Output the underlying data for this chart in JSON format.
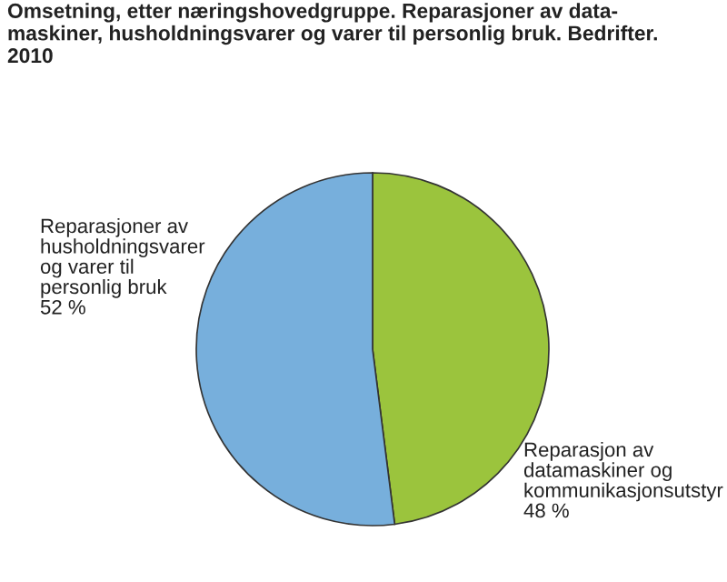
{
  "chart_data": {
    "type": "pie",
    "title": "Omsetning, etter næringshovedgruppe. Reparasjoner av data-\nmaskiner, husholdningsvarer og varer til personlig bruk. Bedrifter.\n2010",
    "categories": [
      "Reparasjon av\ndatamaskiner og\nkommunikasjonsutstyr",
      "Reparasjoner av\nhusholdningsvarer\nog varer til\npersonlig bruk"
    ],
    "values": [
      48,
      52
    ],
    "value_labels": [
      "48 %",
      "52 %"
    ],
    "colors": [
      "#9bc43d",
      "#77afdc"
    ]
  }
}
